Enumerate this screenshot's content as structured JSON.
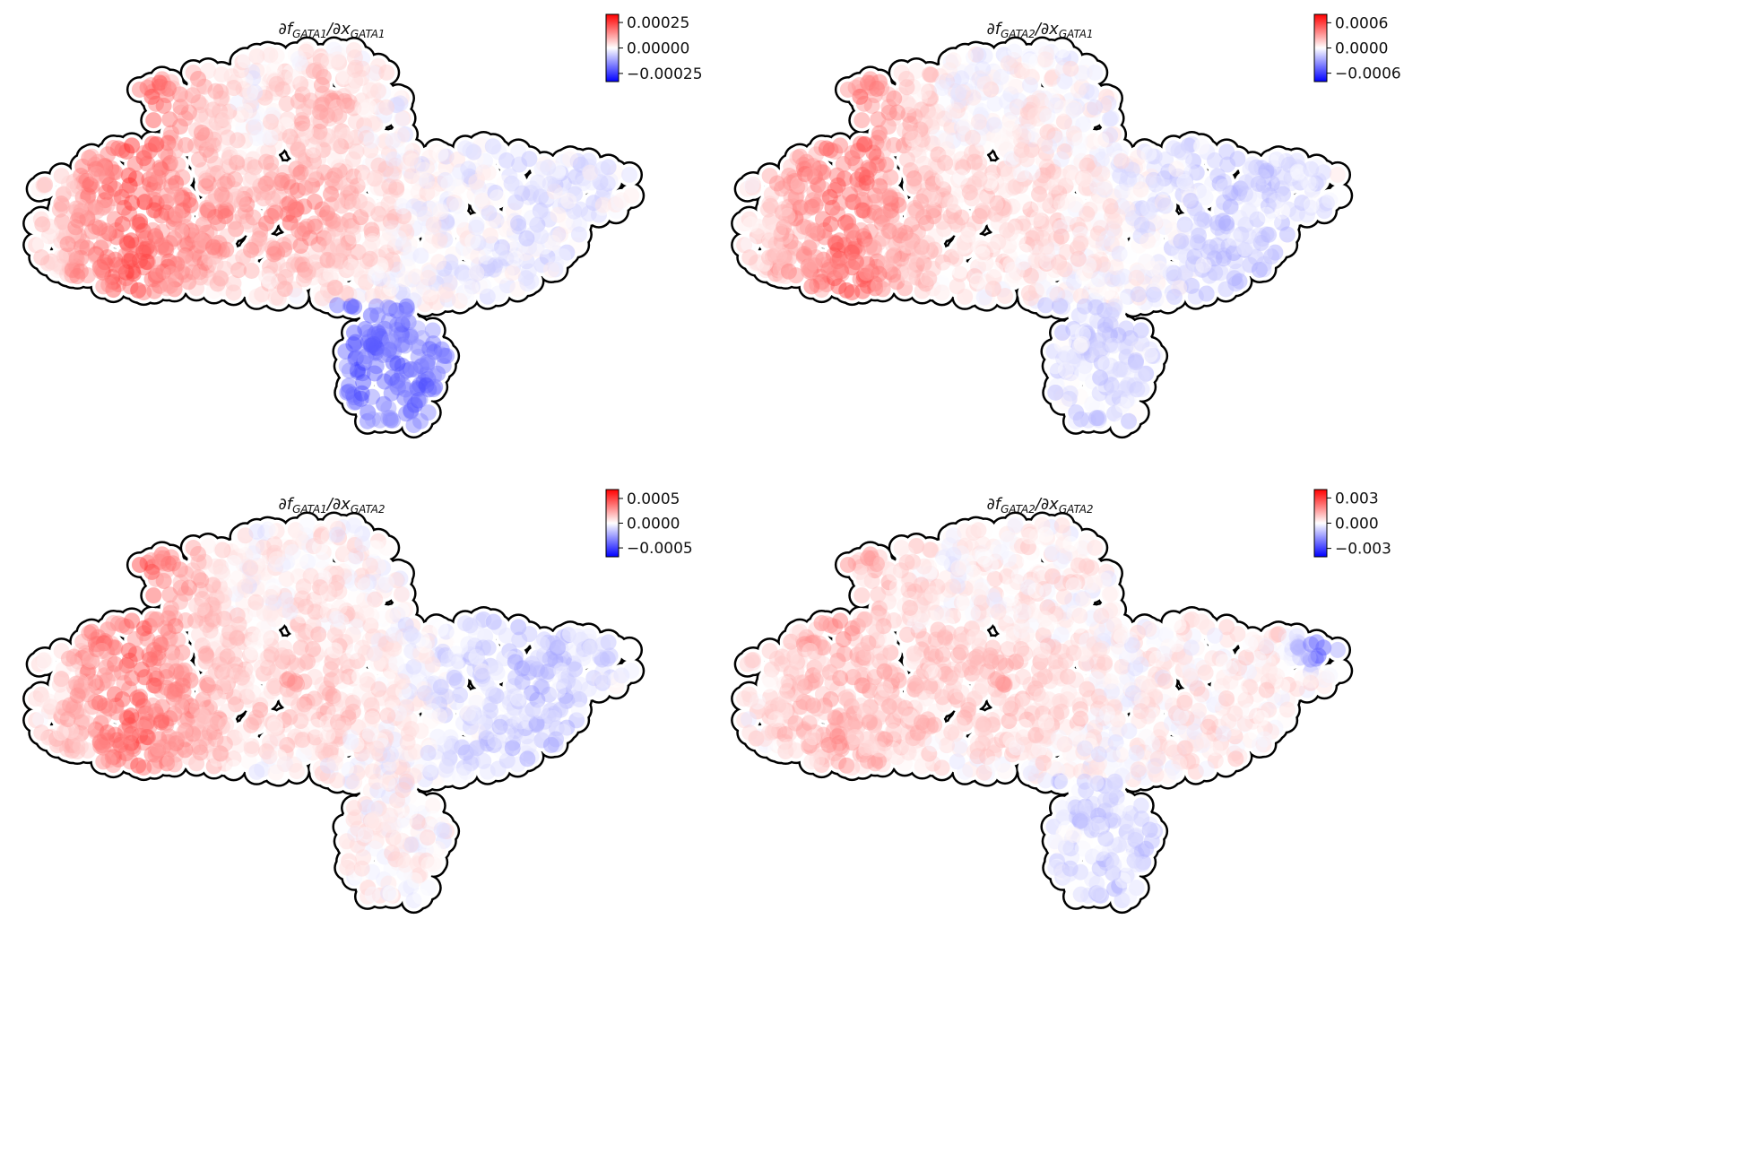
{
  "chart_data": [
    {
      "type": "scatter",
      "title": "∂f_GATA1/∂x_GATA1",
      "title_parts": [
        "∂f",
        "GATA1",
        "/∂x",
        "GATA1"
      ],
      "colormap": "bwr",
      "colorbar": {
        "vmin": -0.00033,
        "vmax": 0.00033,
        "ticks": [
          0.00025,
          0.0,
          -0.00025
        ],
        "tick_labels": [
          "0.00025",
          "0.00000",
          "−0.00025"
        ]
      },
      "pattern": {
        "left": 0.95,
        "center": 0.75,
        "right": -0.15,
        "tail": -0.75,
        "top": 0.45
      }
    },
    {
      "type": "scatter",
      "title": "∂f_GATA2/∂x_GATA1",
      "title_parts": [
        "∂f",
        "GATA2",
        "/∂x",
        "GATA1"
      ],
      "colormap": "bwr",
      "colorbar": {
        "vmin": -0.0008,
        "vmax": 0.0008,
        "ticks": [
          0.0006,
          0.0,
          -0.0006
        ],
        "tick_labels": [
          "0.0006",
          "0.0000",
          "−0.0006"
        ]
      },
      "pattern": {
        "left": 0.85,
        "center": 0.35,
        "right": -0.3,
        "tail": -0.2,
        "top": 0.1
      }
    },
    {
      "type": "scatter",
      "title": "∂f_GATA1/∂x_GATA2",
      "title_parts": [
        "∂f",
        "GATA1",
        "/∂x",
        "GATA2"
      ],
      "colormap": "bwr",
      "colorbar": {
        "vmin": -0.00068,
        "vmax": 0.00068,
        "ticks": [
          0.0005,
          0.0,
          -0.0005
        ],
        "tick_labels": [
          "0.0005",
          "0.0000",
          "−0.0005"
        ]
      },
      "pattern": {
        "left": 0.85,
        "center": 0.45,
        "right": -0.35,
        "tail": 0.05,
        "top": 0.2
      }
    },
    {
      "type": "scatter",
      "title": "∂f_GATA2/∂x_GATA2",
      "title_parts": [
        "∂f",
        "GATA2",
        "/∂x",
        "GATA2"
      ],
      "colormap": "bwr",
      "colorbar": {
        "vmin": -0.004,
        "vmax": 0.004,
        "ticks": [
          0.003,
          0.0,
          -0.003
        ],
        "tick_labels": [
          "0.003",
          "0.000",
          "−0.003"
        ]
      },
      "pattern": {
        "left": 0.5,
        "center": 0.4,
        "right": 0.15,
        "tail": -0.2,
        "top": 0.2,
        "hotspot": -0.95
      }
    }
  ],
  "colors": {
    "positive": "#ff0000",
    "zero": "#ffffff",
    "negative": "#0000ff",
    "outline": "#000000"
  }
}
